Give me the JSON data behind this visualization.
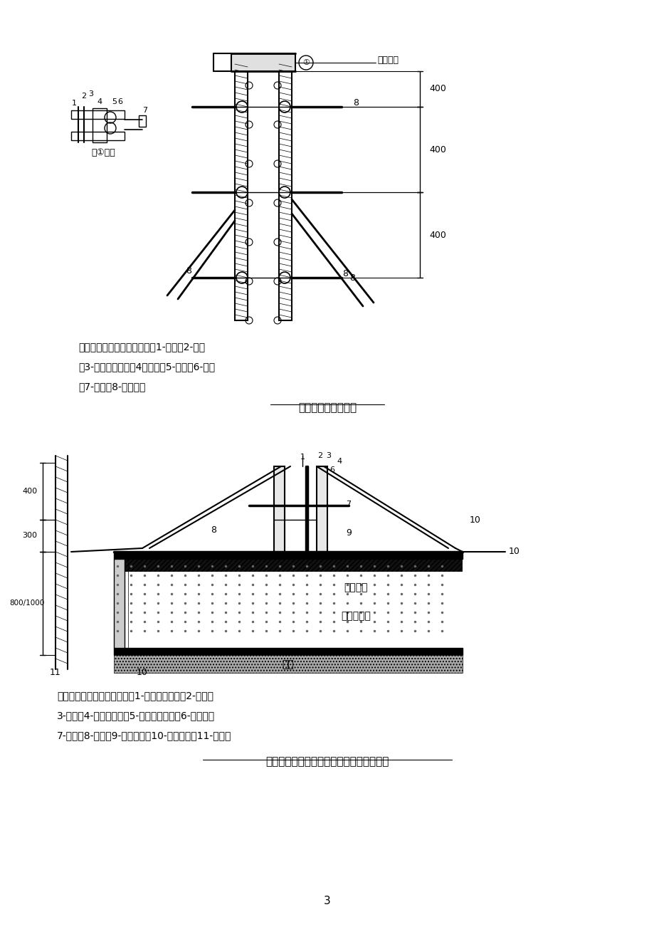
{
  "bg_color": "#ffffff",
  "line_color": "#000000",
  "title1": "池壁模板安装大样图",
  "title2": "泵站水池墙壁水平施工缝处模板安装大样图",
  "desc1_line1": "说明：本图标注尺寸为毫米，1-模板；2-枋木",
  "desc1_line2": "；3-双钢管大横杆；4蝴蝶扣；5-垫片；6-螺帽",
  "desc1_line3": "；7-螺杆；8-钢管支撑",
  "desc2_line1": "说明：本图尺寸标注为毫米，1-止水镀锌钢板；2-模板；",
  "desc2_line2": "3-枋木；4-钢管斜支撑；5-双钢管大横杆；6-蝴蝶扣；",
  "desc2_line3": "7-螺帽；8-螺杆；9-水平支撑；10-预埋钢筋；11-支护桩",
  "page_num": "3",
  "dim_400": "400",
  "dim_300": "300",
  "dim_800_1000": "800/1000",
  "label_node": "图①节点",
  "label_top": "水池顶板",
  "label_1": "1",
  "label_2": "2",
  "label_3": "3",
  "label_4": "4",
  "label_5": "5",
  "label_6": "6",
  "label_7": "7",
  "label_8": "8",
  "label_9": "9",
  "label_10": "10",
  "label_11": "11",
  "label_circle1": "①",
  "label_gangjin": "钢筋安裝",
  "label_diban": "底板混凝土",
  "label_dieceng": "垫层"
}
